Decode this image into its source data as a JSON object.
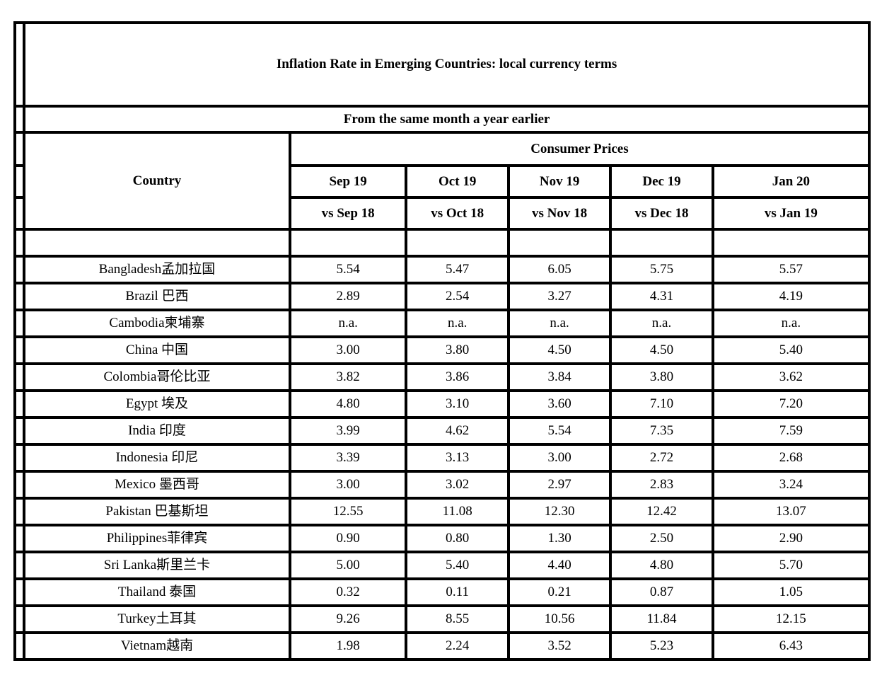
{
  "title": "Inflation Rate in Emerging Countries: local currency terms",
  "subtitle": "From the same month a year earlier",
  "table": {
    "country_header": "Country",
    "group_header": "Consumer Prices",
    "month_headers": [
      "Sep 19",
      "Oct 19",
      "Nov 19",
      "Dec 19",
      "Jan 20"
    ],
    "vs_headers": [
      "vs Sep 18",
      "vs Oct 18",
      "vs Nov 18",
      "vs Dec 18",
      "vs Jan 19"
    ],
    "rows": [
      {
        "country": "Bangladesh孟加拉国",
        "values": [
          "5.54",
          "5.47",
          "6.05",
          "5.75",
          "5.57"
        ]
      },
      {
        "country": "Brazil 巴西",
        "values": [
          "2.89",
          "2.54",
          "3.27",
          "4.31",
          "4.19"
        ]
      },
      {
        "country": "Cambodia柬埔寨",
        "values": [
          "n.a.",
          "n.a.",
          "n.a.",
          "n.a.",
          "n.a."
        ]
      },
      {
        "country": "China 中国",
        "values": [
          "3.00",
          "3.80",
          "4.50",
          "4.50",
          "5.40"
        ]
      },
      {
        "country": "Colombia哥伦比亚",
        "values": [
          "3.82",
          "3.86",
          "3.84",
          "3.80",
          "3.62"
        ]
      },
      {
        "country": "Egypt 埃及",
        "values": [
          "4.80",
          "3.10",
          "3.60",
          "7.10",
          "7.20"
        ]
      },
      {
        "country": "India 印度",
        "values": [
          "3.99",
          "4.62",
          "5.54",
          "7.35",
          "7.59"
        ]
      },
      {
        "country": "Indonesia 印尼",
        "values": [
          "3.39",
          "3.13",
          "3.00",
          "2.72",
          "2.68"
        ]
      },
      {
        "country": "Mexico 墨西哥",
        "values": [
          "3.00",
          "3.02",
          "2.97",
          "2.83",
          "3.24"
        ]
      },
      {
        "country": "Pakistan 巴基斯坦",
        "values": [
          "12.55",
          "11.08",
          "12.30",
          "12.42",
          "13.07"
        ]
      },
      {
        "country": "Philippines菲律宾",
        "values": [
          "0.90",
          "0.80",
          "1.30",
          "2.50",
          "2.90"
        ]
      },
      {
        "country": "Sri Lanka斯里兰卡",
        "values": [
          "5.00",
          "5.40",
          "4.40",
          "4.80",
          "5.70"
        ]
      },
      {
        "country": "Thailand 泰国",
        "values": [
          "0.32",
          "0.11",
          "0.21",
          "0.87",
          "1.05"
        ]
      },
      {
        "country": "Turkey土耳其",
        "values": [
          "9.26",
          "8.55",
          "10.56",
          "11.84",
          "12.15"
        ]
      },
      {
        "country": "Vietnam越南",
        "values": [
          "1.98",
          "2.24",
          "3.52",
          "5.23",
          "6.43"
        ]
      }
    ]
  },
  "colors": {
    "border": "#000000",
    "text": "#000000",
    "background": "#ffffff"
  }
}
